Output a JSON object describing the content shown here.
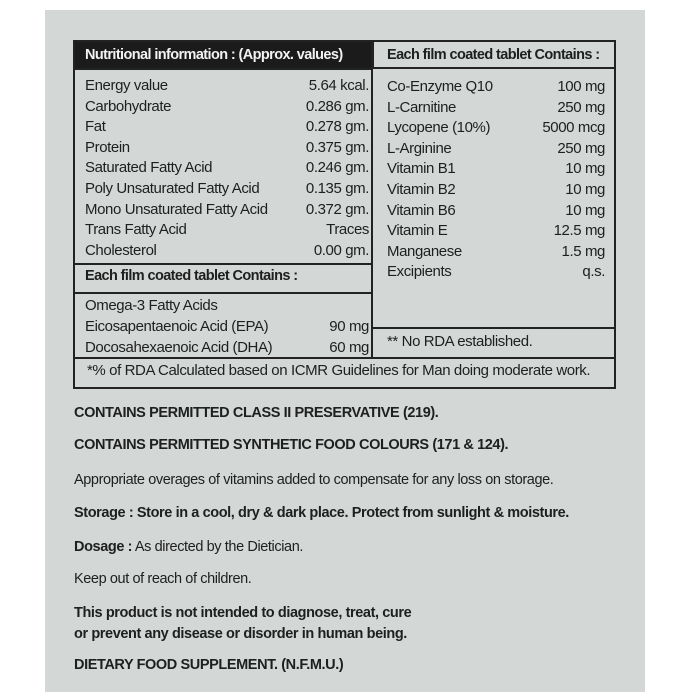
{
  "nutrition": {
    "header": "Nutritional information : (Approx. values)",
    "rows": [
      {
        "name": "Energy value",
        "value": "5.64 kcal."
      },
      {
        "name": "Carbohydrate",
        "value": "0.286 gm."
      },
      {
        "name": "Fat",
        "value": "0.278 gm."
      },
      {
        "name": "Protein",
        "value": "0.375 gm."
      },
      {
        "name": "Saturated Fatty Acid",
        "value": "0.246 gm."
      },
      {
        "name": "Poly Unsaturated Fatty Acid",
        "value": "0.135 gm."
      },
      {
        "name": "Mono Unsaturated Fatty Acid",
        "value": "0.372 gm."
      },
      {
        "name": "Trans Fatty Acid",
        "value": "Traces"
      },
      {
        "name": "Cholesterol",
        "value": "0.00 gm."
      }
    ]
  },
  "omega": {
    "header": "Each film coated tablet Contains :",
    "title": "Omega-3 Fatty Acids",
    "rows": [
      {
        "name": "Eicosapentaenoic Acid (EPA)",
        "value": "90 mg"
      },
      {
        "name": "Docosahexaenoic Acid (DHA)",
        "value": "60 mg"
      }
    ]
  },
  "tablet": {
    "header": "Each film coated tablet Contains :",
    "rows": [
      {
        "name": "Co-Enzyme Q10",
        "value": "100 mg"
      },
      {
        "name": "L-Carnitine",
        "value": "250 mg"
      },
      {
        "name": "Lycopene (10%)",
        "value": "5000 mcg"
      },
      {
        "name": "L-Arginine",
        "value": "250 mg"
      },
      {
        "name": "Vitamin B1",
        "value": "10 mg"
      },
      {
        "name": "Vitamin B2",
        "value": "10 mg"
      },
      {
        "name": "Vitamin B6",
        "value": "10 mg"
      },
      {
        "name": "Vitamin E",
        "value": "12.5 mg"
      },
      {
        "name": "Manganese",
        "value": "1.5 mg"
      },
      {
        "name": "Excipients",
        "value": "q.s."
      }
    ],
    "note": "** No RDA established."
  },
  "footnote": "*% of RDA Calculated based on ICMR Guidelines for Man doing moderate work.",
  "statements": {
    "preservative": "CONTAINS PERMITTED CLASS II PRESERVATIVE (219).",
    "colours": "CONTAINS PERMITTED SYNTHETIC FOOD COLOURS (171 & 124).",
    "overages": "Appropriate overages of vitamins added to compensate for any loss on storage.",
    "storage_label": "Storage :",
    "storage": " Store in a cool, dry & dark place. Protect from sunlight & moisture.",
    "dosage_label": "Dosage :",
    "dosage": " As directed by the Dietician.",
    "children": "Keep out of reach of children.",
    "disclaimer_1": "This product is not intended to diagnose, treat, cure",
    "disclaimer_2": "or prevent any disease or disorder in human being.",
    "supplement": "DIETARY FOOD SUPPLEMENT. (N.F.M.U.)"
  }
}
